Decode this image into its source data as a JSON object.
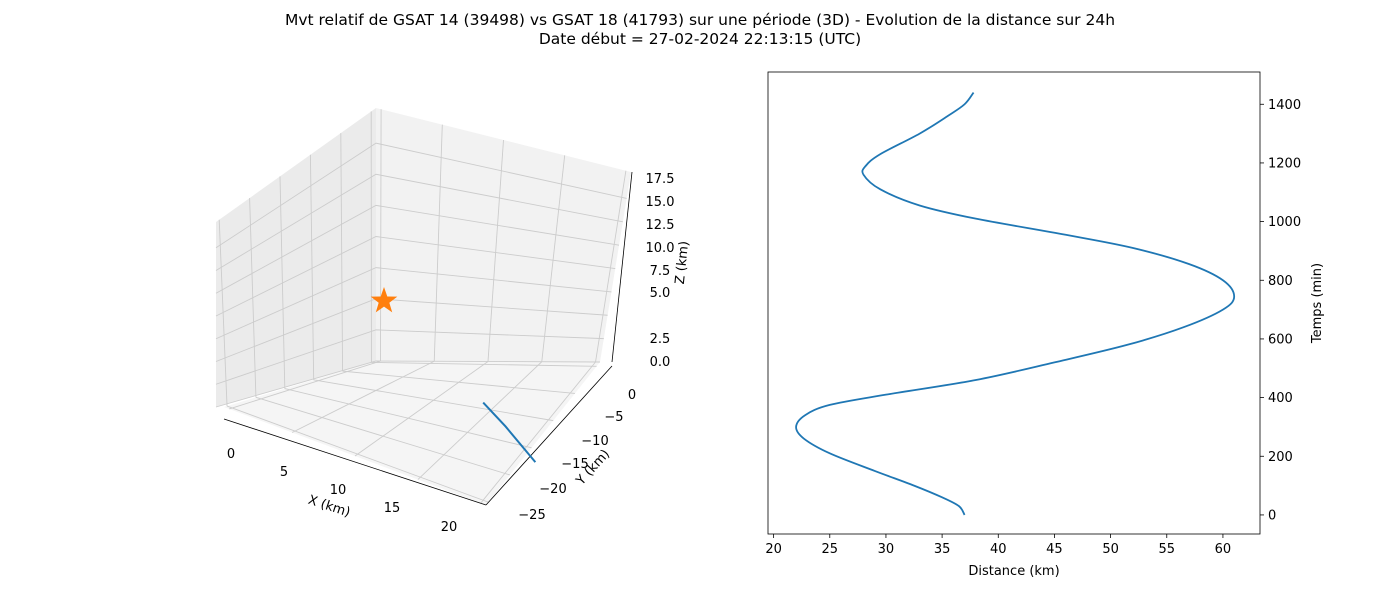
{
  "figure": {
    "title_line1": "Mvt relatif de GSAT 14 (39498) vs GSAT 18 (41793) sur une période (3D) - Evolution de la distance sur 24h",
    "title_line2": "Date début = 27-02-2024 22:13:15 (UTC)"
  },
  "colors": {
    "series": "#1f77b4",
    "marker": "#ff7f0e",
    "pane": "#f2f2f2",
    "grid": "#cccccc"
  },
  "chart_data": [
    {
      "type": "line",
      "projection": "3d",
      "xlabel": "X (km)",
      "ylabel": "Y (km)",
      "zlabel": "Z (km)",
      "xticks": [
        "0",
        "5",
        "10",
        "15",
        "20"
      ],
      "yticks": [
        "0",
        "−5",
        "−10",
        "−15",
        "−20",
        "−25"
      ],
      "zticks": [
        "0.0",
        "2.5",
        "5.0",
        "7.5",
        "10.0",
        "12.5",
        "15.0",
        "17.5"
      ],
      "grid": true,
      "marker_label": "star",
      "series": [
        {
          "points": [
            {
              "x": 13.0,
              "y": -8.0,
              "z": 3.5
            },
            {
              "x": 14.5,
              "y": -9.5,
              "z": 1.5
            },
            {
              "x": 16.5,
              "y": -11.5,
              "z": -1.5
            }
          ]
        }
      ]
    },
    {
      "type": "line",
      "xlabel": "Distance (km)",
      "ylabel": "Temps (min)",
      "xlim": [
        19.5,
        63.3
      ],
      "ylim": [
        -65,
        1510
      ],
      "xticks": [
        20,
        25,
        30,
        35,
        40,
        45,
        50,
        55,
        60
      ],
      "yticks": [
        0,
        200,
        400,
        600,
        800,
        1000,
        1200,
        1400
      ],
      "y_axis_side": "right",
      "grid": false,
      "series": [
        {
          "points": [
            {
              "x": 37.0,
              "y": 0
            },
            {
              "x": 36.5,
              "y": 30
            },
            {
              "x": 35.0,
              "y": 60
            },
            {
              "x": 32.5,
              "y": 100
            },
            {
              "x": 29.0,
              "y": 150
            },
            {
              "x": 25.0,
              "y": 210
            },
            {
              "x": 22.7,
              "y": 260
            },
            {
              "x": 22.0,
              "y": 300
            },
            {
              "x": 22.8,
              "y": 340
            },
            {
              "x": 25.0,
              "y": 375
            },
            {
              "x": 30.0,
              "y": 410
            },
            {
              "x": 38.0,
              "y": 460
            },
            {
              "x": 45.0,
              "y": 520
            },
            {
              "x": 51.5,
              "y": 580
            },
            {
              "x": 56.5,
              "y": 640
            },
            {
              "x": 60.0,
              "y": 700
            },
            {
              "x": 61.0,
              "y": 745
            },
            {
              "x": 60.0,
              "y": 800
            },
            {
              "x": 57.0,
              "y": 855
            },
            {
              "x": 52.0,
              "y": 910
            },
            {
              "x": 46.0,
              "y": 955
            },
            {
              "x": 38.0,
              "y": 1010
            },
            {
              "x": 33.0,
              "y": 1055
            },
            {
              "x": 29.5,
              "y": 1110
            },
            {
              "x": 28.0,
              "y": 1160
            },
            {
              "x": 28.2,
              "y": 1190
            },
            {
              "x": 29.5,
              "y": 1230
            },
            {
              "x": 33.0,
              "y": 1300
            },
            {
              "x": 35.5,
              "y": 1360
            },
            {
              "x": 37.0,
              "y": 1400
            },
            {
              "x": 37.8,
              "y": 1440
            }
          ]
        }
      ]
    }
  ]
}
